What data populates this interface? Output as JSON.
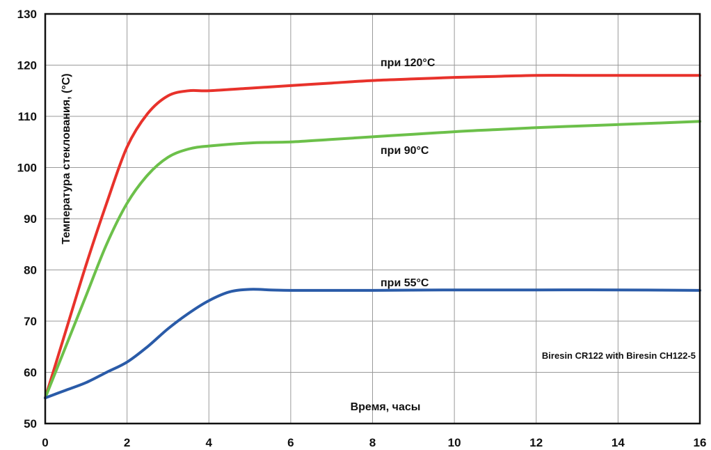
{
  "chart_data": {
    "type": "line",
    "title": "",
    "xlabel": "Время, часы",
    "ylabel": "Температура стеклования, (°C)",
    "xlim": [
      0,
      16
    ],
    "ylim": [
      50,
      130
    ],
    "x_ticks": [
      0,
      2,
      4,
      6,
      8,
      10,
      12,
      14,
      16
    ],
    "y_ticks": [
      50,
      60,
      70,
      80,
      90,
      100,
      110,
      120,
      130
    ],
    "grid": true,
    "annotation": "Biresin CR122 with Biresin CH122-5",
    "series": [
      {
        "name": "при 120°C",
        "color": "#e8322b",
        "x": [
          0,
          0.5,
          1,
          1.5,
          2,
          2.5,
          3,
          3.5,
          4,
          5,
          6,
          7,
          8,
          9,
          10,
          11,
          12,
          13,
          14,
          15,
          16
        ],
        "y": [
          55,
          68,
          81,
          93,
          104,
          110.5,
          114,
          115,
          115,
          115.5,
          116,
          116.5,
          117,
          117.3,
          117.6,
          117.8,
          118,
          118,
          118,
          118,
          118
        ]
      },
      {
        "name": "при 90°C",
        "color": "#6cc04a",
        "x": [
          0,
          0.5,
          1,
          1.5,
          2,
          2.5,
          3,
          3.5,
          4,
          5,
          6,
          7,
          8,
          9,
          10,
          11,
          12,
          13,
          14,
          15,
          16
        ],
        "y": [
          55,
          65,
          75,
          85,
          93,
          98.5,
          102,
          103.6,
          104.2,
          104.8,
          105,
          105.5,
          106,
          106.5,
          107,
          107.4,
          107.8,
          108.1,
          108.4,
          108.7,
          109
        ]
      },
      {
        "name": "при 55°C",
        "color": "#2a5ba8",
        "x": [
          0,
          0.5,
          1,
          1.5,
          2,
          2.5,
          3,
          3.5,
          4,
          4.5,
          5,
          5.5,
          6,
          7,
          8,
          10,
          12,
          14,
          16
        ],
        "y": [
          55,
          56.5,
          58,
          60,
          62,
          65,
          68.5,
          71.5,
          74,
          75.7,
          76.2,
          76.1,
          76,
          76,
          76,
          76.1,
          76.1,
          76.1,
          76
        ]
      }
    ]
  }
}
